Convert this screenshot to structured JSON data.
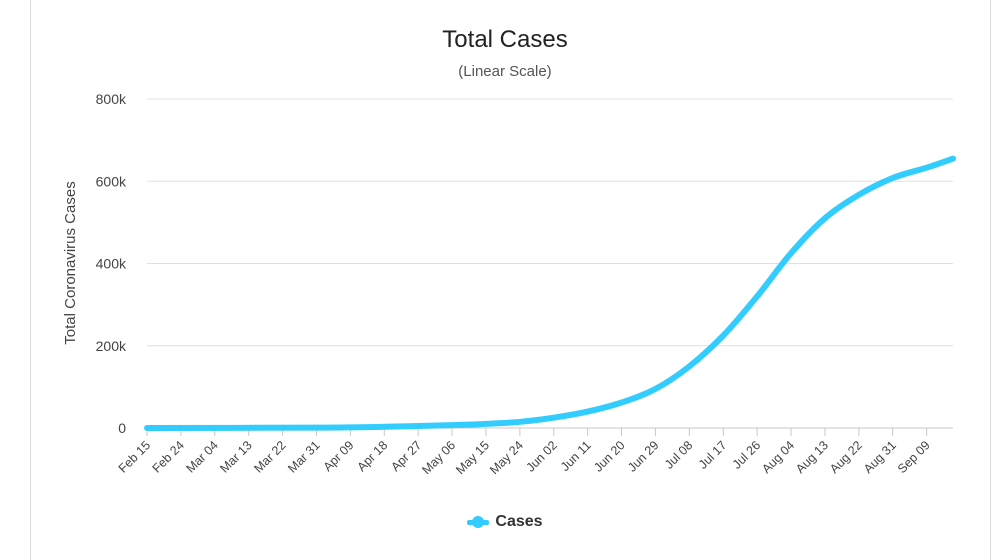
{
  "chart_data": {
    "type": "line",
    "title": "Total Cases",
    "subtitle": "(Linear Scale)",
    "xlabel": "",
    "ylabel": "Total Coronavirus Cases",
    "ylim": [
      0,
      800000
    ],
    "y_ticks": [
      {
        "value": 0,
        "label": "0"
      },
      {
        "value": 200000,
        "label": "200k"
      },
      {
        "value": 400000,
        "label": "400k"
      },
      {
        "value": 600000,
        "label": "600k"
      },
      {
        "value": 800000,
        "label": "800k"
      }
    ],
    "grid": true,
    "legend_position": "bottom",
    "x_tick_labels": [
      "Feb 15",
      "Feb 24",
      "Mar 04",
      "Mar 13",
      "Mar 22",
      "Mar 31",
      "Apr 09",
      "Apr 18",
      "Apr 27",
      "May 06",
      "May 15",
      "May 24",
      "Jun 02",
      "Jun 11",
      "Jun 20",
      "Jun 29",
      "Jul 08",
      "Jul 17",
      "Jul 26",
      "Aug 04",
      "Aug 13",
      "Aug 22",
      "Aug 31",
      "Sep 09"
    ],
    "x_range_days": [
      0,
      214
    ],
    "series": [
      {
        "name": "Cases",
        "color": "#33ccff",
        "points": [
          {
            "day": 0,
            "value": 0
          },
          {
            "day": 45,
            "value": 1000
          },
          {
            "day": 63,
            "value": 3000
          },
          {
            "day": 81,
            "value": 7000
          },
          {
            "day": 90,
            "value": 10000
          },
          {
            "day": 99,
            "value": 15000
          },
          {
            "day": 108,
            "value": 25000
          },
          {
            "day": 117,
            "value": 40000
          },
          {
            "day": 126,
            "value": 62000
          },
          {
            "day": 135,
            "value": 95000
          },
          {
            "day": 144,
            "value": 150000
          },
          {
            "day": 153,
            "value": 225000
          },
          {
            "day": 162,
            "value": 320000
          },
          {
            "day": 171,
            "value": 425000
          },
          {
            "day": 180,
            "value": 510000
          },
          {
            "day": 189,
            "value": 567000
          },
          {
            "day": 198,
            "value": 608000
          },
          {
            "day": 207,
            "value": 633000
          },
          {
            "day": 214,
            "value": 655000
          }
        ]
      }
    ]
  }
}
